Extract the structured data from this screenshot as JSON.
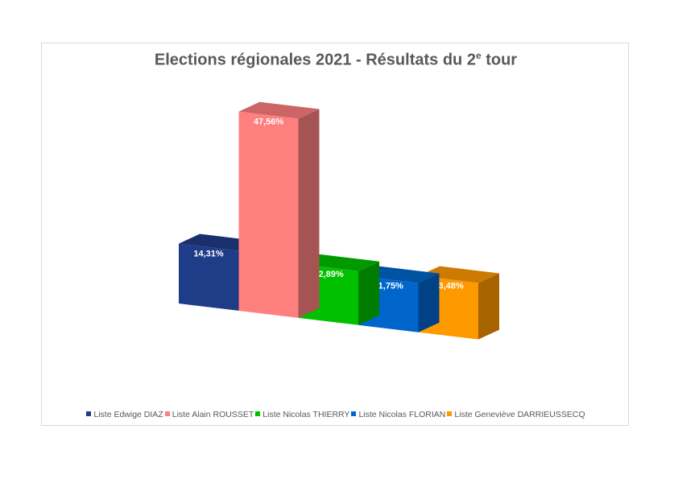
{
  "chart_data": {
    "type": "bar",
    "title": {
      "main": "Elections régionales 2021 - Résultats du 2",
      "sup": "e",
      "tail": " tour"
    },
    "categories": [
      "Liste Edwige DIAZ",
      "Liste Alain ROUSSET",
      "Liste Nicolas THIERRY",
      "Liste Nicolas FLORIAN",
      "Liste Geneviève DARRIEUSSECQ"
    ],
    "values": [
      14.31,
      47.56,
      12.89,
      11.75,
      13.48
    ],
    "labels": [
      "14,31%",
      "47,56%",
      "12,89%",
      "11,75%",
      "13,48%"
    ],
    "unit": "%",
    "colors": [
      "#1f3c88",
      "#ff7f7f",
      "#00c000",
      "#0066cc",
      "#ff9900"
    ],
    "legend_position": "bottom",
    "style": "3d-columns",
    "grid": false
  }
}
